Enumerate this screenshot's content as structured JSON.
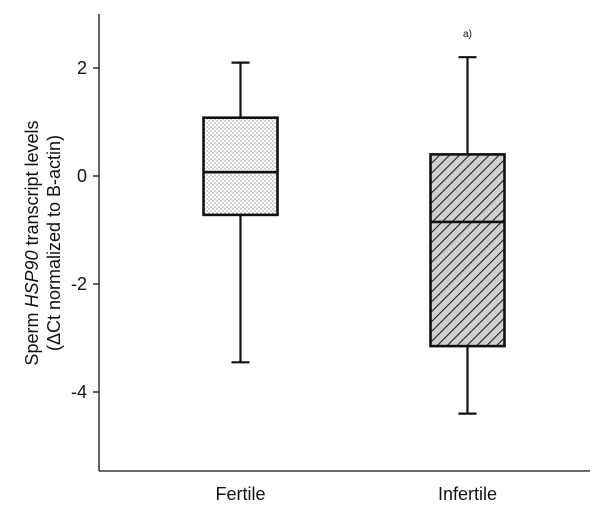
{
  "chart_data": {
    "type": "boxplot",
    "categories": [
      "Fertile",
      "Infertile"
    ],
    "ylabel_line1_prefix": "Sperm ",
    "ylabel_line1_italic": "HSP90",
    "ylabel_line1_suffix": " transcript levels",
    "ylabel_line2": "(ΔCt normalized to B-actin)",
    "ylim": [
      -5.4,
      3.0
    ],
    "yticks": [
      {
        "value": 2,
        "label": "2"
      },
      {
        "value": 0,
        "label": "0"
      },
      {
        "value": -2,
        "label": "-2"
      },
      {
        "value": -4,
        "label": "-4"
      }
    ],
    "boxes": [
      {
        "name": "Fertile",
        "whisker_low": -3.45,
        "q1": -0.72,
        "median": 0.07,
        "q3": 1.08,
        "whisker_high": 2.1,
        "fill": "dots"
      },
      {
        "name": "Infertile",
        "whisker_low": -4.4,
        "q1": -3.15,
        "median": -0.85,
        "q3": 0.4,
        "whisker_high": 2.2,
        "fill": "hatch"
      }
    ],
    "annotation": {
      "text": "a)",
      "category": "Infertile",
      "value": 2.65
    }
  }
}
